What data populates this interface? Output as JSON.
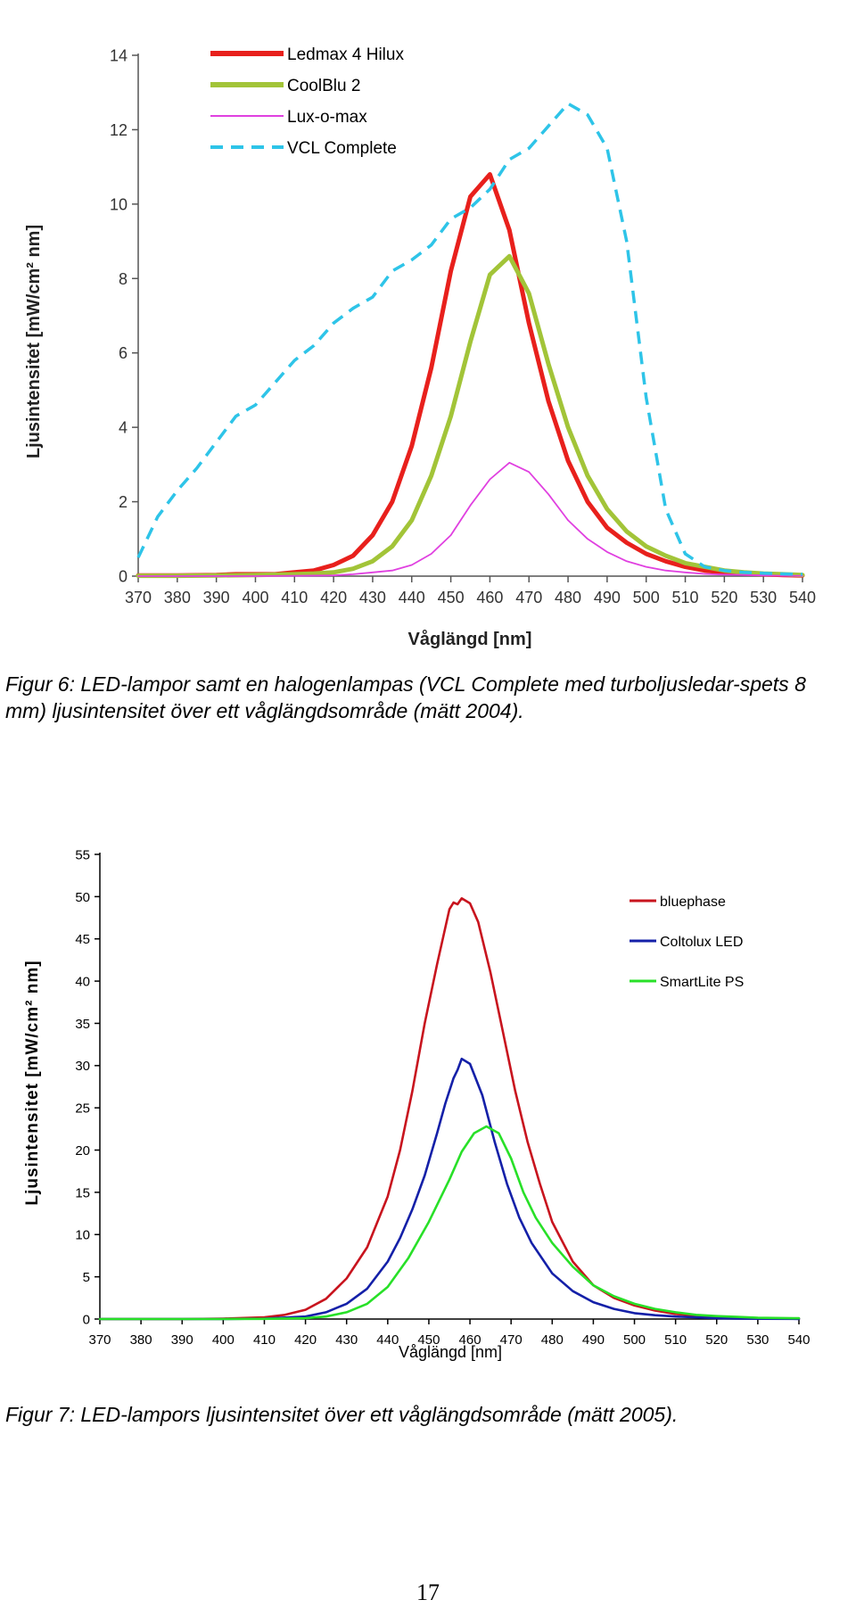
{
  "chart_data": [
    {
      "type": "line",
      "title": "",
      "xlabel": "Våglängd [nm]",
      "ylabel": "Ljusintensitet  [mW/cm² nm]",
      "xlim": [
        370,
        540
      ],
      "ylim": [
        0,
        14
      ],
      "xticks": [
        370,
        380,
        390,
        400,
        410,
        420,
        430,
        440,
        450,
        460,
        470,
        480,
        490,
        500,
        510,
        520,
        530,
        540
      ],
      "yticks": [
        0,
        2,
        4,
        6,
        8,
        10,
        12,
        14
      ],
      "grid": false,
      "legend_position": "top-left",
      "series": [
        {
          "name": "Ledmax 4 Hilux",
          "color": "#e8201c",
          "style": "solid",
          "x": [
            370,
            380,
            390,
            395,
            400,
            405,
            410,
            415,
            420,
            425,
            430,
            435,
            440,
            445,
            450,
            455,
            460,
            465,
            470,
            475,
            480,
            485,
            490,
            495,
            500,
            505,
            510,
            515,
            520,
            525,
            530,
            535,
            540
          ],
          "y": [
            0.02,
            0.02,
            0.03,
            0.05,
            0.05,
            0.05,
            0.1,
            0.15,
            0.3,
            0.55,
            1.1,
            2.0,
            3.5,
            5.6,
            8.2,
            10.2,
            10.8,
            9.3,
            6.8,
            4.7,
            3.1,
            2.0,
            1.3,
            0.9,
            0.6,
            0.4,
            0.25,
            0.15,
            0.1,
            0.07,
            0.05,
            0.03,
            0.02
          ]
        },
        {
          "name": "CoolBlu 2",
          "color": "#a2c438",
          "style": "solid",
          "x": [
            370,
            380,
            390,
            400,
            410,
            415,
            420,
            425,
            430,
            435,
            440,
            445,
            450,
            455,
            460,
            465,
            470,
            475,
            480,
            485,
            490,
            495,
            500,
            505,
            510,
            515,
            520,
            525,
            530,
            535,
            540
          ],
          "y": [
            0.01,
            0.01,
            0.02,
            0.03,
            0.05,
            0.07,
            0.1,
            0.2,
            0.4,
            0.8,
            1.5,
            2.7,
            4.3,
            6.3,
            8.1,
            8.6,
            7.6,
            5.7,
            4.0,
            2.7,
            1.8,
            1.2,
            0.8,
            0.55,
            0.35,
            0.25,
            0.15,
            0.1,
            0.07,
            0.05,
            0.03
          ]
        },
        {
          "name": "Lux-o-max",
          "color": "#e040e0",
          "style": "solid",
          "x": [
            370,
            380,
            390,
            400,
            410,
            420,
            425,
            430,
            435,
            440,
            445,
            450,
            455,
            460,
            465,
            470,
            475,
            480,
            485,
            490,
            495,
            500,
            505,
            510,
            515,
            520,
            525,
            530,
            535,
            540
          ],
          "y": [
            0.0,
            0.0,
            0.0,
            0.0,
            0.01,
            0.02,
            0.05,
            0.1,
            0.15,
            0.3,
            0.6,
            1.1,
            1.9,
            2.6,
            3.05,
            2.8,
            2.2,
            1.5,
            1.0,
            0.65,
            0.4,
            0.25,
            0.15,
            0.1,
            0.06,
            0.04,
            0.03,
            0.02,
            0.01,
            0.01
          ]
        },
        {
          "name": "VCL Complete",
          "color": "#2ec4e8",
          "style": "dashed",
          "x": [
            370,
            375,
            380,
            385,
            390,
            395,
            400,
            405,
            410,
            415,
            420,
            425,
            430,
            435,
            440,
            445,
            450,
            455,
            460,
            465,
            470,
            475,
            480,
            485,
            490,
            495,
            500,
            505,
            510,
            515,
            520,
            525,
            530,
            535,
            540
          ],
          "y": [
            0.5,
            1.6,
            2.3,
            2.9,
            3.6,
            4.3,
            4.6,
            5.2,
            5.8,
            6.2,
            6.8,
            7.2,
            7.5,
            8.2,
            8.5,
            8.9,
            9.6,
            9.9,
            10.4,
            11.2,
            11.5,
            12.1,
            12.7,
            12.4,
            11.5,
            9.0,
            4.8,
            1.8,
            0.6,
            0.25,
            0.15,
            0.1,
            0.08,
            0.06,
            0.05
          ]
        }
      ]
    },
    {
      "type": "line",
      "title": "",
      "xlabel": "Våglängd [nm]",
      "ylabel": "Ljusintensitet [mW/cm² nm]",
      "xlim": [
        370,
        540
      ],
      "ylim": [
        0,
        55
      ],
      "xticks": [
        370,
        380,
        390,
        400,
        410,
        420,
        430,
        440,
        450,
        460,
        470,
        480,
        490,
        500,
        510,
        520,
        530,
        540
      ],
      "yticks": [
        0,
        5,
        10,
        15,
        20,
        25,
        30,
        35,
        40,
        45,
        50,
        55
      ],
      "grid": false,
      "legend_position": "top-right",
      "series": [
        {
          "name": "bluephase",
          "color": "#c8141e",
          "style": "solid",
          "x": [
            370,
            380,
            390,
            400,
            410,
            415,
            420,
            425,
            430,
            435,
            440,
            443,
            446,
            449,
            452,
            455,
            456,
            457,
            458,
            460,
            462,
            465,
            468,
            471,
            474,
            477,
            480,
            485,
            490,
            495,
            500,
            505,
            510,
            515,
            520,
            525,
            530,
            535,
            540
          ],
          "y": [
            0,
            0,
            0,
            0.05,
            0.2,
            0.5,
            1.1,
            2.4,
            4.8,
            8.5,
            14.5,
            20,
            27,
            35,
            42,
            48.5,
            49.3,
            49.1,
            49.8,
            49.2,
            47,
            41,
            34,
            27,
            21,
            16,
            11.5,
            6.8,
            4.0,
            2.5,
            1.6,
            1.0,
            0.6,
            0.4,
            0.25,
            0.15,
            0.1,
            0.05,
            0.03
          ]
        },
        {
          "name": "Coltolux LED",
          "color": "#1420a8",
          "style": "solid",
          "x": [
            370,
            380,
            390,
            400,
            410,
            420,
            425,
            430,
            435,
            440,
            443,
            446,
            449,
            452,
            454,
            456,
            457,
            458,
            460,
            463,
            466,
            469,
            472,
            475,
            480,
            485,
            490,
            495,
            500,
            505,
            510,
            515,
            520,
            525,
            530,
            540
          ],
          "y": [
            0,
            0,
            0,
            0,
            0.05,
            0.3,
            0.8,
            1.8,
            3.6,
            6.8,
            9.6,
            13,
            17,
            22,
            25.5,
            28.5,
            29.5,
            30.8,
            30.2,
            26.5,
            21,
            16,
            12,
            9,
            5.4,
            3.3,
            2.0,
            1.2,
            0.7,
            0.45,
            0.3,
            0.2,
            0.1,
            0.05,
            0.03,
            0.01
          ]
        },
        {
          "name": "SmartLite PS",
          "color": "#28e028",
          "style": "solid",
          "x": [
            370,
            380,
            390,
            400,
            410,
            420,
            425,
            430,
            435,
            440,
            445,
            450,
            455,
            458,
            461,
            464,
            467,
            470,
            473,
            476,
            480,
            485,
            490,
            495,
            500,
            505,
            510,
            515,
            520,
            525,
            530,
            540
          ],
          "y": [
            0,
            0,
            0,
            0,
            0.02,
            0.1,
            0.3,
            0.8,
            1.8,
            3.8,
            7.2,
            11.5,
            16.5,
            19.8,
            22,
            22.8,
            22,
            19,
            15,
            12,
            9,
            6.2,
            4.0,
            2.7,
            1.8,
            1.2,
            0.8,
            0.5,
            0.35,
            0.25,
            0.15,
            0.1
          ]
        }
      ]
    }
  ],
  "captions": {
    "fig6": "Figur 6: LED-lampor samt en halogenlampas (VCL Complete med turboljusledar-spets 8 mm) ljusintensitet över ett våglängdsområde (mätt 2004).",
    "fig7": "Figur 7: LED-lampors ljusintensitet över ett våglängdsområde (mätt 2005)."
  },
  "page_number": "17"
}
